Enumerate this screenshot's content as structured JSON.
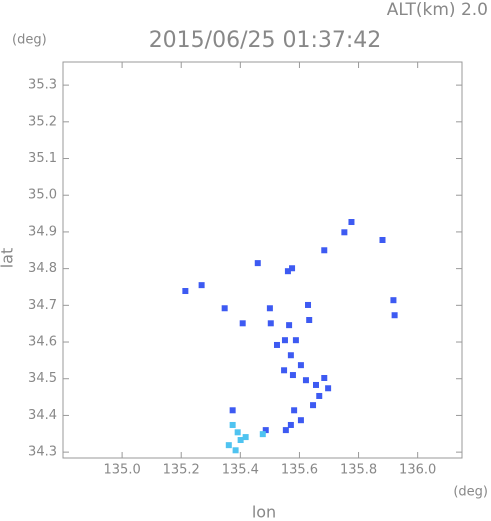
{
  "chart_data": {
    "type": "scatter",
    "title": "2015/06/25 01:37:42",
    "annotation": "ALT(km) 2.0",
    "y_unit": "(deg)",
    "x_unit": "(deg)",
    "x_label": "lon",
    "y_label": "lat",
    "xlim": [
      134.8,
      136.15
    ],
    "ylim": [
      34.284,
      35.363
    ],
    "xticks": [
      {
        "value": 135.0,
        "label": "135.0"
      },
      135.2,
      135.4,
      135.6,
      135.8,
      {
        "value": 136.0,
        "label": "136.0"
      }
    ],
    "yticks": [
      34.3,
      34.4,
      34.5,
      34.6,
      34.7,
      34.8,
      34.9,
      {
        "value": 35.0,
        "label": "35.0"
      },
      35.1,
      35.2,
      35.3
    ],
    "series": [
      {
        "color": "#3d5af2",
        "x": [
          135.776,
          135.752,
          135.881,
          135.684,
          135.561,
          135.575,
          135.459,
          135.214,
          135.269,
          135.347,
          135.408,
          135.5,
          135.503,
          135.565,
          135.629,
          135.633,
          135.918,
          135.922,
          135.524,
          135.551,
          135.588,
          135.571,
          135.548,
          135.578,
          135.605,
          135.622,
          135.656,
          135.684,
          135.697,
          135.667,
          135.646,
          135.582,
          135.605,
          135.571,
          135.554,
          135.374,
          135.486
        ],
        "values": [
          34.927,
          34.899,
          34.878,
          34.85,
          34.793,
          34.801,
          34.815,
          34.739,
          34.755,
          34.692,
          34.651,
          34.692,
          34.651,
          34.646,
          34.701,
          34.66,
          34.714,
          34.673,
          34.592,
          34.605,
          34.605,
          34.564,
          34.523,
          34.51,
          34.537,
          34.496,
          34.483,
          34.502,
          34.474,
          34.453,
          34.428,
          34.414,
          34.387,
          34.374,
          34.36,
          34.414,
          34.36
        ]
      },
      {
        "color": "#4fc3f0",
        "x": [
          135.391,
          135.401,
          135.384,
          135.418,
          135.361,
          135.476,
          135.374
        ],
        "values": [
          34.354,
          34.333,
          34.305,
          34.341,
          34.319,
          34.349,
          34.374
        ]
      }
    ]
  }
}
